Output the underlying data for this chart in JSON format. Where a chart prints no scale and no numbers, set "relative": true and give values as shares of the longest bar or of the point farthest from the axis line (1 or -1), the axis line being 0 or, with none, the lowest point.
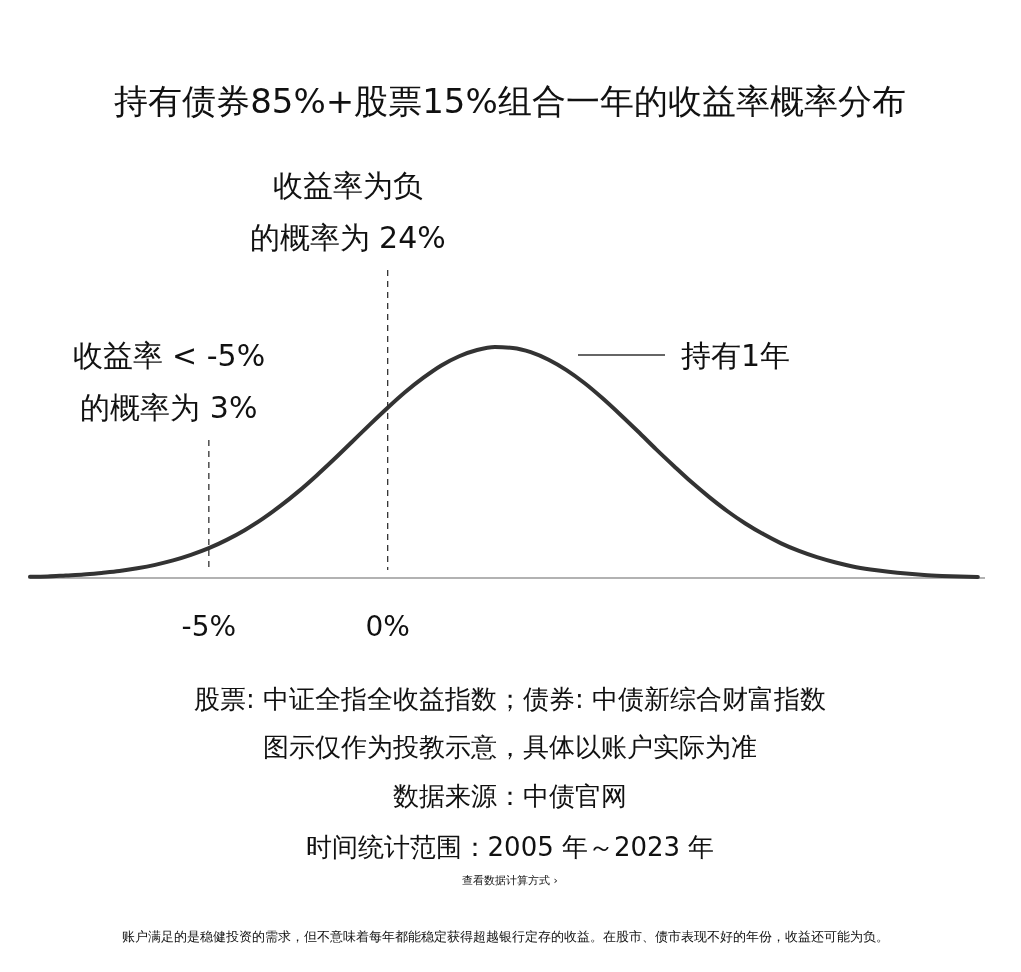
{
  "chart_data": {
    "type": "line",
    "title": "持有债券85%+股票15%组合一年的收益率概率分布",
    "relative": true,
    "xlim": [
      -10,
      16.7
    ],
    "xticks": [
      {
        "value": -5,
        "label": "-5%"
      },
      {
        "value": 0,
        "label": "0%"
      }
    ],
    "tick_labels": "x",
    "grid": false,
    "legend": "right",
    "marker": "none",
    "line_style": "solid",
    "series": [
      {
        "name": "持有1年",
        "color": "#333333",
        "x": [
          -10,
          -9.5,
          -9,
          -8.5,
          -8,
          -7.5,
          -7,
          -6.5,
          -6,
          -5.5,
          -5,
          -4.5,
          -4,
          -3.5,
          -3,
          -2.5,
          -2,
          -1.5,
          -1,
          -0.5,
          0,
          0.5,
          1,
          1.5,
          2,
          2.5,
          3,
          3.5,
          4,
          4.5,
          5,
          5.5,
          6,
          6.5,
          7,
          7.5,
          8,
          8.5,
          9,
          9.5,
          10,
          10.5,
          11,
          11.5,
          12,
          12.5,
          13,
          13.5,
          14,
          14.5,
          15,
          15.5,
          16,
          16.5
        ],
        "values": [
          0.005,
          0.007,
          0.011,
          0.015,
          0.022,
          0.03,
          0.042,
          0.057,
          0.076,
          0.1,
          0.129,
          0.165,
          0.207,
          0.256,
          0.312,
          0.374,
          0.442,
          0.514,
          0.589,
          0.664,
          0.737,
          0.806,
          0.867,
          0.92,
          0.96,
          0.987,
          1,
          0.996,
          0.978,
          0.945,
          0.9,
          0.844,
          0.779,
          0.708,
          0.634,
          0.558,
          0.485,
          0.414,
          0.349,
          0.289,
          0.236,
          0.19,
          0.15,
          0.117,
          0.09,
          0.068,
          0.05,
          0.037,
          0.027,
          0.019,
          0.013,
          0.009,
          0.006,
          0.004
        ]
      }
    ],
    "ref_lines": [
      {
        "axis": "x",
        "value": -5,
        "label": "收益率 < -5%的概率为 3%",
        "line_style": "dashed",
        "color": "#333333"
      },
      {
        "axis": "x",
        "value": 0,
        "label": "收益率为负的概率为 24%",
        "line_style": "dashed",
        "color": "#333333"
      }
    ],
    "annotations": [
      "股票: 中证全指全收益指数；债券: 中债新综合财富指数",
      "图示仅作为投教示意，具体以账户实际为准",
      "数据来源：中债官网",
      "时间统计范围：2005 年～2023 年",
      "查看数据计算方式 ›",
      "账户满足的是稳健投资的需求，但不意味着每年都能稳定获得超越银行定存的收益。在股市、债市表现不好的年份，收益还可能为负。"
    ]
  }
}
